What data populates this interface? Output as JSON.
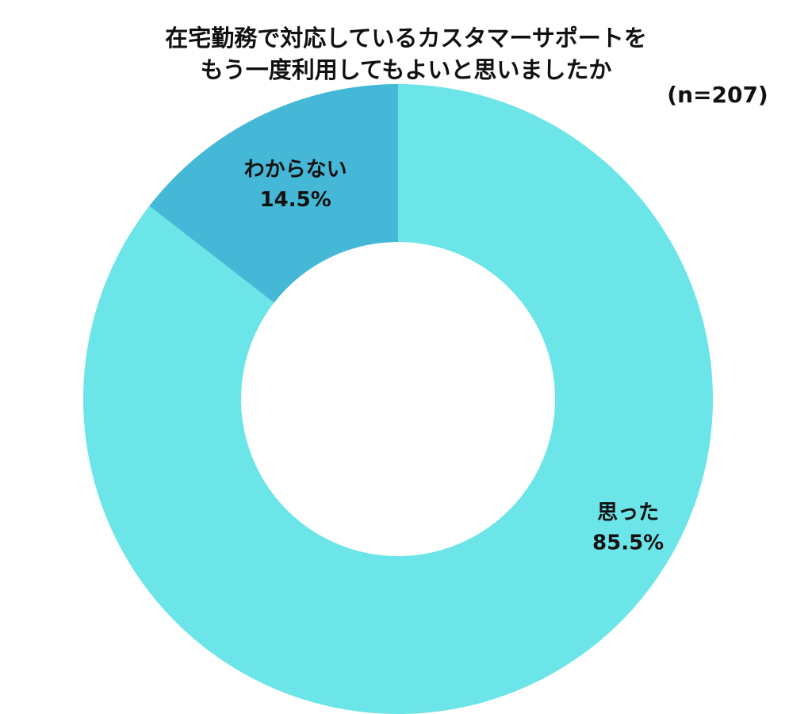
{
  "chart_data": {
    "type": "pie",
    "title_lines": [
      "在宅勤務で対応しているカスタマーサポートを",
      "もう一度利用してもよいと思いましたか"
    ],
    "sample_size": "(n=207)",
    "slices": [
      {
        "label": "思った",
        "value": 85.5,
        "value_label": "85.5%",
        "color": "#6ce5e8"
      },
      {
        "label": "わからない",
        "value": 14.5,
        "value_label": "14.5%",
        "color": "#44b8d6"
      }
    ]
  }
}
